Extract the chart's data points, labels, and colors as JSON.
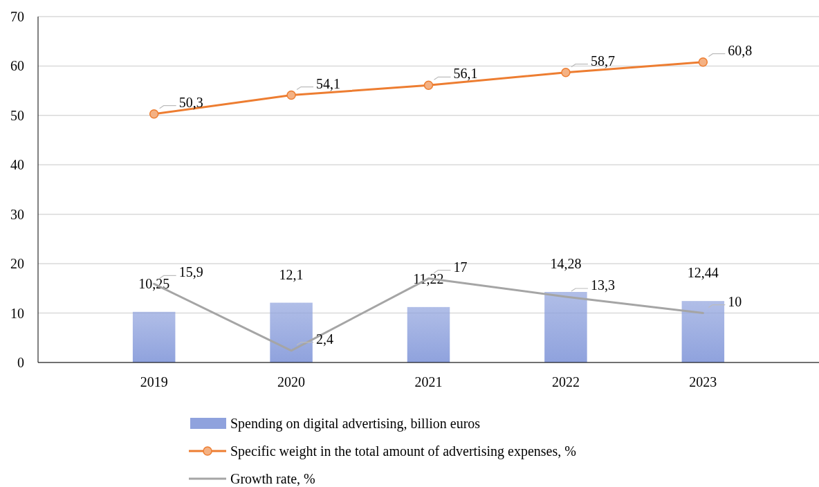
{
  "chart_data": {
    "type": "bar",
    "categories": [
      "2019",
      "2020",
      "2021",
      "2022",
      "2023"
    ],
    "series": [
      {
        "name": "Spending on digital advertising, billion euros",
        "color": "#8fa2dd",
        "values": [
          10.25,
          12.1,
          11.22,
          14.28,
          12.44
        ],
        "value_labels": [
          "10,25",
          "12,1",
          "11,22",
          "14,28",
          "12,44"
        ]
      },
      {
        "name": "Specific weight in the total amount of advertising expenses, %",
        "type": "line",
        "color": "#ed7d31",
        "marker": "circle",
        "values": [
          50.3,
          54.1,
          56.1,
          58.7,
          60.8
        ],
        "value_labels": [
          "50,3",
          "54,1",
          "56,1",
          "58,7",
          "60,8"
        ]
      },
      {
        "name": "Growth rate, %",
        "type": "line",
        "color": "#a5a5a5",
        "marker": "none",
        "values": [
          15.9,
          2.4,
          17,
          13.3,
          10
        ],
        "value_labels": [
          "15,9",
          "2,4",
          "17",
          "13,3",
          "10"
        ]
      }
    ],
    "ylim": [
      0,
      70
    ],
    "yticks": [
      0,
      10,
      20,
      30,
      40,
      50,
      60,
      70
    ],
    "grid": "y",
    "legend": "bottom"
  }
}
